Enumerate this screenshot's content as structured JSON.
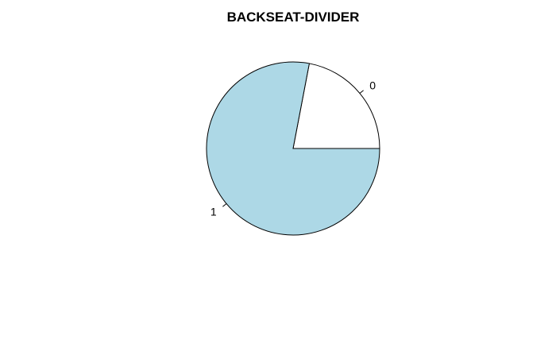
{
  "chart_data": {
    "type": "pie",
    "title": "BACKSEAT-DIVIDER",
    "slices": [
      {
        "label": "0",
        "value": 0.22,
        "color": "#ffffff"
      },
      {
        "label": "1",
        "value": 0.78,
        "color": "#add8e6"
      }
    ],
    "start_angle_deg": 0,
    "direction": "counterclockwise",
    "border_color": "#000000"
  }
}
